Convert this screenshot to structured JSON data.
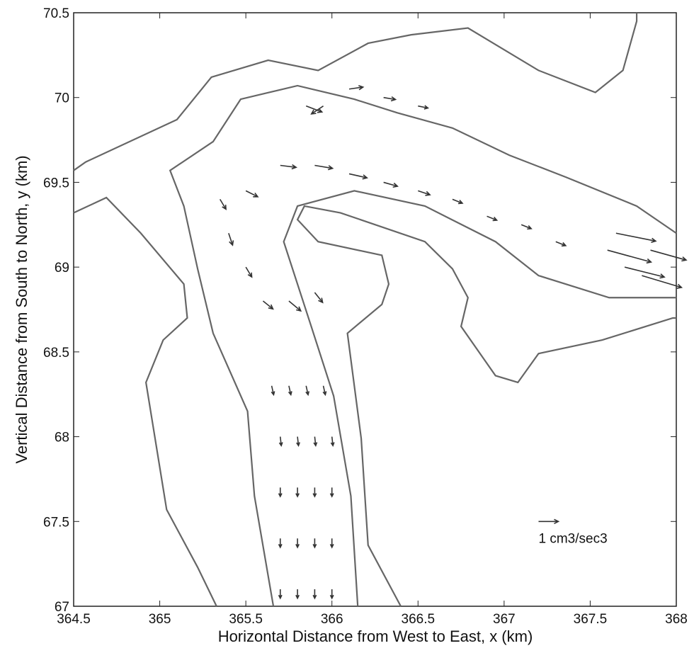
{
  "chart_data": {
    "type": "quiver",
    "xlabel": "Horizontal Distance from West to East, x (km)",
    "ylabel": "Vertical Distance from South to North, y (km)",
    "xlim": [
      364.5,
      368
    ],
    "ylim": [
      67,
      70.5
    ],
    "xticks": [
      364.5,
      365,
      365.5,
      366,
      366.5,
      367,
      367.5,
      368
    ],
    "yticks": [
      67,
      67.5,
      68,
      68.5,
      69,
      69.5,
      70,
      70.5
    ],
    "color": "#333333",
    "contour_color": "#666666",
    "contours": [
      {
        "x": [
          364.5,
          364.69,
          364.89,
          365.14,
          365.16,
          365.02,
          364.92,
          364.96,
          365.04,
          365.22,
          365.33
        ],
        "y": [
          69.32,
          69.41,
          69.2,
          68.9,
          68.7,
          68.57,
          68.32,
          68.07,
          67.57,
          67.23,
          67.0
        ]
      },
      {
        "x": [
          366.4,
          366.21,
          366.17,
          366.09,
          366.29,
          366.33,
          366.29,
          365.92,
          365.8,
          365.84,
          366.05,
          366.54,
          366.7,
          366.79,
          366.75,
          366.95,
          367.08,
          367.2,
          367.57,
          367.98,
          368
        ],
        "y": [
          67.0,
          67.36,
          67.99,
          68.61,
          68.78,
          68.9,
          69.07,
          69.15,
          69.28,
          69.36,
          69.32,
          69.15,
          68.99,
          68.82,
          68.65,
          68.36,
          68.32,
          68.49,
          68.57,
          68.7,
          68.7
        ]
      },
      {
        "x": [
          364.5,
          364.57,
          365.1,
          365.3,
          365.63,
          365.92,
          366.21,
          366.46,
          366.79,
          367.2,
          367.53,
          367.69,
          367.77,
          367.77
        ],
        "y": [
          69.57,
          69.62,
          69.87,
          70.12,
          70.22,
          70.16,
          70.32,
          70.37,
          70.41,
          70.16,
          70.03,
          70.16,
          70.45,
          70.5
        ]
      },
      {
        "x": [
          365.66,
          365.55,
          365.51,
          365.31,
          365.22,
          365.14,
          365.06,
          365.31,
          365.47,
          365.8,
          366.13,
          366.38,
          366.7,
          367.03,
          367.36,
          367.77,
          368
        ],
        "y": [
          67.0,
          67.65,
          68.15,
          68.61,
          68.99,
          69.36,
          69.57,
          69.74,
          69.99,
          70.07,
          69.99,
          69.91,
          69.82,
          69.66,
          69.53,
          69.36,
          69.2
        ]
      },
      {
        "x": [
          366.15,
          366.11,
          366.01,
          365.88,
          365.8,
          365.72,
          365.8,
          366.13,
          366.54,
          366.95,
          367.2,
          367.61,
          368
        ],
        "y": [
          67.0,
          67.65,
          68.24,
          68.65,
          68.9,
          69.15,
          69.36,
          69.45,
          69.36,
          69.15,
          68.95,
          68.82,
          68.82
        ]
      }
    ],
    "x": [
      365.7,
      365.8,
      365.9,
      366.0,
      365.7,
      365.8,
      365.9,
      366.0,
      365.7,
      365.8,
      365.9,
      366.0,
      365.7,
      365.8,
      365.9,
      366.0,
      365.65,
      365.75,
      365.85,
      365.95,
      365.6,
      365.75,
      365.9,
      365.5,
      365.4,
      365.35,
      365.5,
      365.7,
      365.9,
      366.1,
      366.3,
      366.5,
      366.7,
      366.9,
      367.1,
      367.3,
      365.85,
      365.95,
      366.1,
      366.3,
      366.5,
      367.6,
      367.7,
      367.8,
      367.65,
      367.85
    ],
    "y": [
      67.1,
      67.1,
      67.1,
      67.1,
      67.4,
      67.4,
      67.4,
      67.4,
      67.7,
      67.7,
      67.7,
      67.7,
      68.0,
      68.0,
      68.0,
      68.0,
      68.3,
      68.3,
      68.3,
      68.3,
      68.8,
      68.8,
      68.85,
      69.0,
      69.2,
      69.4,
      69.45,
      69.6,
      69.6,
      69.55,
      69.5,
      69.45,
      69.4,
      69.3,
      69.25,
      69.15,
      69.95,
      69.95,
      70.05,
      70.0,
      69.95,
      69.1,
      69.0,
      68.95,
      69.2,
      69.1
    ],
    "u": [
      0,
      0,
      0,
      0,
      0,
      0,
      0,
      0,
      0,
      0,
      0,
      0,
      0.05,
      0.05,
      0.05,
      0.05,
      0.1,
      0.1,
      0.1,
      0.1,
      0.5,
      0.6,
      0.4,
      0.3,
      0.2,
      0.3,
      0.6,
      0.8,
      0.9,
      0.9,
      0.7,
      0.6,
      0.5,
      0.5,
      0.5,
      0.5,
      0.8,
      -0.6,
      0.7,
      0.6,
      0.5,
      2.2,
      2.0,
      2.0,
      2.0,
      1.8
    ],
    "v": [
      -0.45,
      -0.45,
      -0.45,
      -0.45,
      -0.45,
      -0.45,
      -0.45,
      -0.45,
      -0.45,
      -0.45,
      -0.45,
      -0.45,
      -0.45,
      -0.45,
      -0.45,
      -0.45,
      -0.45,
      -0.45,
      -0.45,
      -0.45,
      -0.4,
      -0.5,
      -0.5,
      -0.5,
      -0.6,
      -0.5,
      -0.3,
      -0.1,
      -0.15,
      -0.2,
      -0.2,
      -0.2,
      -0.2,
      -0.2,
      -0.2,
      -0.2,
      -0.3,
      -0.4,
      0.1,
      -0.1,
      -0.1,
      -0.6,
      -0.5,
      -0.6,
      -0.4,
      -0.5
    ],
    "key": {
      "x": 367.2,
      "y": 67.5,
      "u": 1,
      "label": "1 cm3/sec3"
    }
  }
}
